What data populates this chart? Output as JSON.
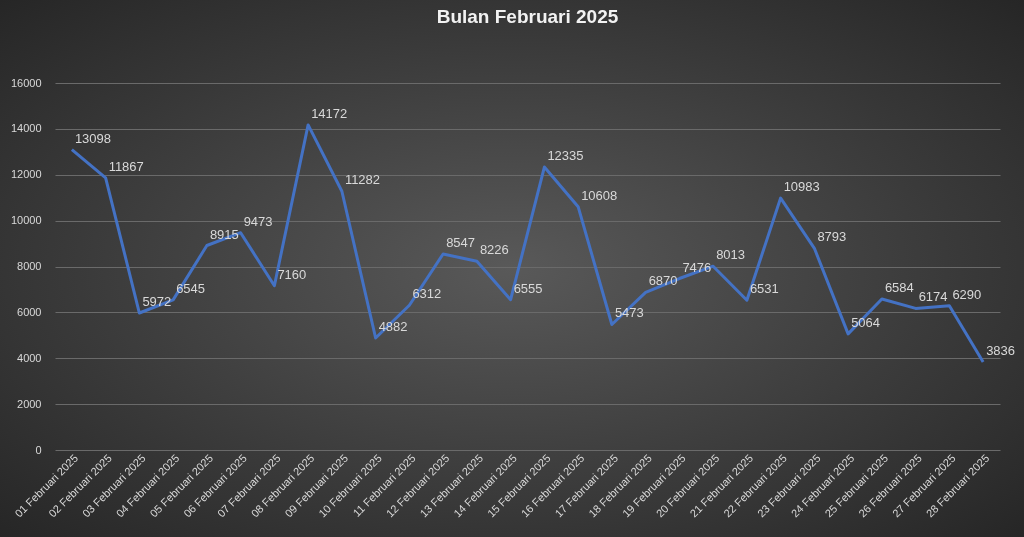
{
  "chart_data": {
    "type": "line",
    "title": "Bulan Februari 2025",
    "categories": [
      "01 Februari 2025",
      "02 Februari 2025",
      "03 Februari 2025",
      "04 Februari 2025",
      "05 Februari 2025",
      "06 Februari 2025",
      "07 Februari 2025",
      "08 Februari 2025",
      "09 Februari 2025",
      "10 Februari 2025",
      "11 Februari 2025",
      "12 Februari 2025",
      "13 Februari 2025",
      "14 Februari 2025",
      "15 Februari 2025",
      "16 Februari 2025",
      "17 Februari 2025",
      "18 Februari 2025",
      "19 Februari 2025",
      "20 Februari 2025",
      "21 Februari 2025",
      "22 Februari 2025",
      "23 Februari 2025",
      "24 Februari 2025",
      "25 Februari 2025",
      "26 Februari 2025",
      "27 Februari 2025",
      "28 Februari 2025"
    ],
    "series": [
      {
        "color": "#4472c4",
        "values": [
          13098,
          11867,
          5972,
          6545,
          8915,
          9473,
          7160,
          14172,
          11282,
          4882,
          6312,
          8547,
          8226,
          6555,
          12335,
          10608,
          5473,
          6870,
          7476,
          8013,
          6531,
          10983,
          8793,
          5064,
          6584,
          6174,
          6290,
          3836
        ]
      }
    ],
    "ylim": [
      0,
      16000
    ],
    "yticks": [
      0,
      2000,
      4000,
      6000,
      8000,
      10000,
      12000,
      14000,
      16000
    ],
    "grid": "y",
    "data_labels": true,
    "marker": "none",
    "line_style": "solid"
  }
}
